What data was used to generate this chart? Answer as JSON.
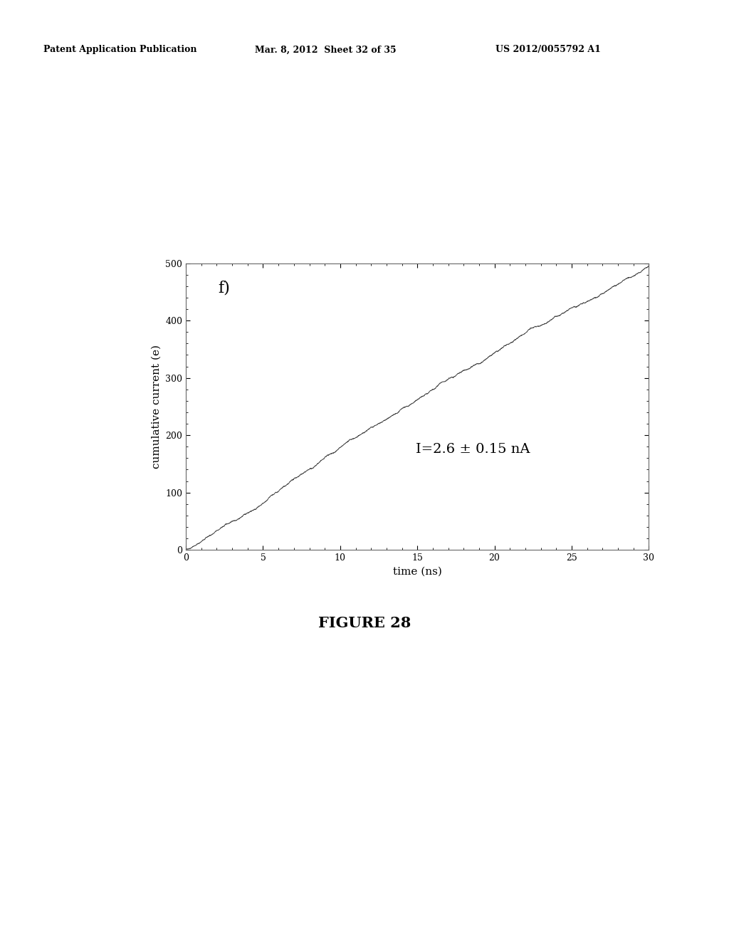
{
  "header_left": "Patent Application Publication",
  "header_mid": "Mar. 8, 2012  Sheet 32 of 35",
  "header_right": "US 2012/0055792 A1",
  "figure_label": "FIGURE 28",
  "panel_label": "f)",
  "annotation": "I=2.6 ± 0.15 nA",
  "xlabel": "time (ns)",
  "ylabel": "cumulative current (e)",
  "xlim": [
    0,
    30
  ],
  "ylim": [
    0,
    500
  ],
  "xticks": [
    0,
    5,
    10,
    15,
    20,
    25,
    30
  ],
  "yticks": [
    0,
    100,
    200,
    300,
    400,
    500
  ],
  "slope": 16.333,
  "line_color": "#444444",
  "background_color": "#ffffff",
  "header_fontsize": 9,
  "figure_label_fontsize": 15,
  "panel_label_fontsize": 16,
  "annotation_fontsize": 14,
  "axis_label_fontsize": 11,
  "tick_label_fontsize": 9
}
